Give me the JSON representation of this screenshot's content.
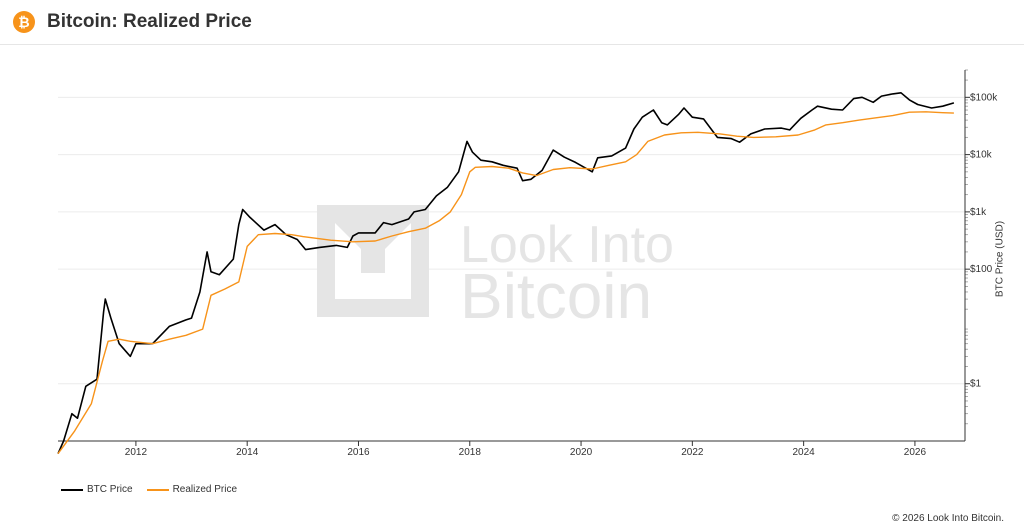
{
  "header": {
    "title": "Bitcoin: Realized Price",
    "logo_icon": "bitcoin-icon",
    "logo_glyph": "₿"
  },
  "watermark": {
    "line1": "Look Into",
    "line2": "Bitcoin"
  },
  "footer": {
    "copyright": "© 2026 Look Into Bitcoin."
  },
  "colors": {
    "btc_price": "#000000",
    "realized_price": "#f7931a",
    "watermark": "#e5e5e5"
  },
  "chart_data": {
    "type": "line",
    "title": "Bitcoin: Realized Price",
    "ylabel": "BTC Price (USD)",
    "yscale": "log",
    "ylim": [
      0.1,
      300000
    ],
    "xlim": [
      2010.6,
      2026.9
    ],
    "x_ticks": [
      2012,
      2014,
      2016,
      2018,
      2020,
      2022,
      2024,
      2026
    ],
    "y_ticks": [
      {
        "value": 1,
        "label": "$1"
      },
      {
        "value": 100,
        "label": "$100"
      },
      {
        "value": 1000,
        "label": "$1k"
      },
      {
        "value": 10000,
        "label": "$10k"
      },
      {
        "value": 100000,
        "label": "$100k"
      }
    ],
    "grid": true,
    "legend_position": "bottom-left",
    "series": [
      {
        "name": "BTC Price",
        "points": [
          [
            2010.6,
            0.06
          ],
          [
            2010.7,
            0.1
          ],
          [
            2010.85,
            0.3
          ],
          [
            2010.95,
            0.25
          ],
          [
            2011.1,
            0.9
          ],
          [
            2011.3,
            1.2
          ],
          [
            2011.42,
            18
          ],
          [
            2011.45,
            30
          ],
          [
            2011.55,
            14
          ],
          [
            2011.7,
            5
          ],
          [
            2011.9,
            3
          ],
          [
            2012.0,
            5
          ],
          [
            2012.3,
            5
          ],
          [
            2012.6,
            10
          ],
          [
            2012.9,
            13
          ],
          [
            2013.0,
            14
          ],
          [
            2013.15,
            40
          ],
          [
            2013.28,
            200
          ],
          [
            2013.35,
            90
          ],
          [
            2013.5,
            80
          ],
          [
            2013.75,
            150
          ],
          [
            2013.85,
            600
          ],
          [
            2013.92,
            1100
          ],
          [
            2014.05,
            800
          ],
          [
            2014.3,
            480
          ],
          [
            2014.5,
            600
          ],
          [
            2014.7,
            400
          ],
          [
            2014.9,
            330
          ],
          [
            2015.05,
            220
          ],
          [
            2015.3,
            240
          ],
          [
            2015.6,
            260
          ],
          [
            2015.8,
            240
          ],
          [
            2015.9,
            380
          ],
          [
            2016.0,
            430
          ],
          [
            2016.3,
            430
          ],
          [
            2016.45,
            650
          ],
          [
            2016.6,
            600
          ],
          [
            2016.9,
            750
          ],
          [
            2017.0,
            1000
          ],
          [
            2017.2,
            1100
          ],
          [
            2017.4,
            1900
          ],
          [
            2017.6,
            2700
          ],
          [
            2017.8,
            5000
          ],
          [
            2017.95,
            17000
          ],
          [
            2018.05,
            11000
          ],
          [
            2018.2,
            8000
          ],
          [
            2018.4,
            7500
          ],
          [
            2018.6,
            6500
          ],
          [
            2018.85,
            5800
          ],
          [
            2018.95,
            3500
          ],
          [
            2019.1,
            3700
          ],
          [
            2019.3,
            5300
          ],
          [
            2019.5,
            12000
          ],
          [
            2019.7,
            9000
          ],
          [
            2019.9,
            7300
          ],
          [
            2020.2,
            5000
          ],
          [
            2020.3,
            8800
          ],
          [
            2020.55,
            9500
          ],
          [
            2020.8,
            13000
          ],
          [
            2020.95,
            28000
          ],
          [
            2021.1,
            45000
          ],
          [
            2021.3,
            60000
          ],
          [
            2021.45,
            36000
          ],
          [
            2021.55,
            33000
          ],
          [
            2021.75,
            50000
          ],
          [
            2021.85,
            65000
          ],
          [
            2022.0,
            45000
          ],
          [
            2022.2,
            42000
          ],
          [
            2022.45,
            20000
          ],
          [
            2022.7,
            19000
          ],
          [
            2022.85,
            16500
          ],
          [
            2023.05,
            23000
          ],
          [
            2023.3,
            28000
          ],
          [
            2023.6,
            29000
          ],
          [
            2023.75,
            27000
          ],
          [
            2023.95,
            43000
          ],
          [
            2024.15,
            60000
          ],
          [
            2024.25,
            70000
          ],
          [
            2024.5,
            62000
          ],
          [
            2024.7,
            60000
          ],
          [
            2024.9,
            95000
          ],
          [
            2025.05,
            100000
          ],
          [
            2025.25,
            82000
          ],
          [
            2025.4,
            105000
          ],
          [
            2025.6,
            115000
          ],
          [
            2025.75,
            120000
          ],
          [
            2025.9,
            90000
          ],
          [
            2026.05,
            75000
          ],
          [
            2026.3,
            65000
          ],
          [
            2026.5,
            70000
          ],
          [
            2026.7,
            80000
          ]
        ]
      },
      {
        "name": "Realized Price",
        "points": [
          [
            2010.6,
            0.06
          ],
          [
            2010.9,
            0.15
          ],
          [
            2011.2,
            0.45
          ],
          [
            2011.4,
            2.5
          ],
          [
            2011.5,
            5.5
          ],
          [
            2011.7,
            6
          ],
          [
            2011.9,
            5.5
          ],
          [
            2012.3,
            5
          ],
          [
            2012.6,
            6
          ],
          [
            2012.9,
            7
          ],
          [
            2013.2,
            9
          ],
          [
            2013.35,
            35
          ],
          [
            2013.6,
            45
          ],
          [
            2013.85,
            60
          ],
          [
            2014.0,
            250
          ],
          [
            2014.2,
            400
          ],
          [
            2014.5,
            420
          ],
          [
            2014.8,
            400
          ],
          [
            2015.0,
            370
          ],
          [
            2015.5,
            320
          ],
          [
            2015.9,
            300
          ],
          [
            2016.3,
            310
          ],
          [
            2016.6,
            380
          ],
          [
            2016.9,
            450
          ],
          [
            2017.2,
            520
          ],
          [
            2017.45,
            700
          ],
          [
            2017.65,
            1000
          ],
          [
            2017.85,
            2000
          ],
          [
            2018.0,
            5000
          ],
          [
            2018.1,
            6000
          ],
          [
            2018.4,
            6200
          ],
          [
            2018.7,
            5800
          ],
          [
            2018.95,
            4800
          ],
          [
            2019.2,
            4300
          ],
          [
            2019.5,
            5500
          ],
          [
            2019.8,
            5900
          ],
          [
            2020.2,
            5600
          ],
          [
            2020.5,
            6500
          ],
          [
            2020.8,
            7500
          ],
          [
            2021.0,
            10000
          ],
          [
            2021.2,
            17000
          ],
          [
            2021.5,
            22000
          ],
          [
            2021.8,
            24000
          ],
          [
            2022.1,
            24500
          ],
          [
            2022.5,
            23000
          ],
          [
            2022.8,
            21000
          ],
          [
            2023.1,
            20000
          ],
          [
            2023.5,
            20500
          ],
          [
            2023.9,
            22000
          ],
          [
            2024.2,
            27000
          ],
          [
            2024.4,
            33000
          ],
          [
            2024.7,
            36000
          ],
          [
            2025.0,
            40000
          ],
          [
            2025.3,
            44000
          ],
          [
            2025.6,
            48000
          ],
          [
            2025.9,
            55000
          ],
          [
            2026.2,
            56000
          ],
          [
            2026.5,
            54000
          ],
          [
            2026.7,
            53000
          ]
        ]
      }
    ]
  }
}
